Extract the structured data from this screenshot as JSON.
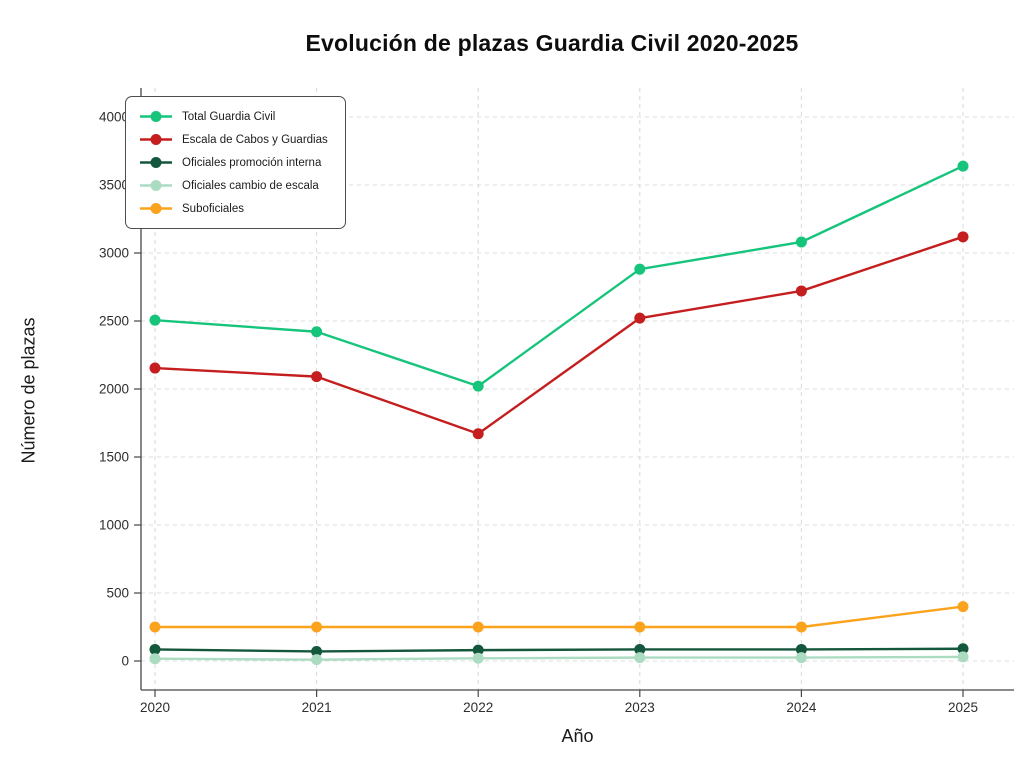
{
  "chart_data": {
    "type": "line",
    "title": "Evolución de plazas Guardia Civil 2020-2025",
    "xlabel": "Año",
    "ylabel": "Número de plazas",
    "x": [
      2020,
      2021,
      2022,
      2023,
      2024,
      2025
    ],
    "series": [
      {
        "name": "Total Guardia Civil",
        "color": "#17c47c",
        "values": [
          2506,
          2421,
          2021,
          2881,
          3081,
          3639
        ]
      },
      {
        "name": "Escala de Cabos y Guardias",
        "color": "#c41e1e",
        "values": [
          2154,
          2091,
          1671,
          2521,
          2721,
          3119
        ]
      },
      {
        "name": "Oficiales promoción interna",
        "color": "#14573c",
        "values": [
          85,
          70,
          80,
          85,
          85,
          90
        ]
      },
      {
        "name": "Oficiales cambio de escala",
        "color": "#abdcc2",
        "values": [
          17,
          10,
          20,
          25,
          25,
          30
        ]
      },
      {
        "name": "Suboficiales",
        "color": "#fba31d",
        "values": [
          250,
          250,
          250,
          250,
          250,
          400
        ]
      }
    ],
    "ylim": [
      0,
      4000
    ],
    "yticks": [
      0,
      500,
      1000,
      1500,
      2000,
      2500,
      3000,
      3500,
      4000
    ],
    "grid": true,
    "legend_position": "upper left",
    "colors": {
      "spine": "#474747",
      "grid": "#dcdcdc",
      "tick_label": "#2e2e2e"
    }
  }
}
